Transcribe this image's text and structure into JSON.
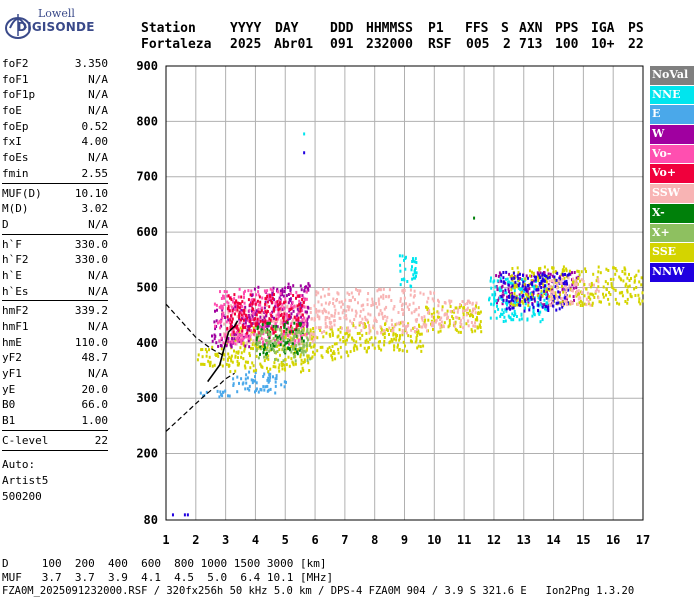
{
  "logo": {
    "line1": "Lowell",
    "line2": "DIGISONDE"
  },
  "header": {
    "labels": [
      "Station",
      "YYYY",
      "DAY",
      "DDD",
      "HHMMSS",
      "P1",
      "FFS",
      "S",
      "AXN",
      "PPS",
      "IGA",
      "PS"
    ],
    "values": [
      "Fortaleza",
      "2025",
      "Abr01",
      "091",
      "232000",
      "RSF",
      "005",
      "2",
      "713",
      "100",
      "10+",
      "22"
    ]
  },
  "params": [
    [
      {
        "label": "foF2",
        "value": "3.350"
      },
      {
        "label": "foF1",
        "value": "N/A"
      },
      {
        "label": "foF1p",
        "value": "N/A"
      },
      {
        "label": "foE",
        "value": "N/A"
      },
      {
        "label": "foEp",
        "value": "0.52"
      },
      {
        "label": "fxI",
        "value": "4.00"
      },
      {
        "label": "foEs",
        "value": "N/A"
      },
      {
        "label": "fmin",
        "value": "2.55"
      }
    ],
    [
      {
        "label": "MUF(D)",
        "value": "10.10"
      },
      {
        "label": "M(D)",
        "value": "3.02"
      },
      {
        "label": "D",
        "value": "N/A"
      }
    ],
    [
      {
        "label": "h`F",
        "value": "330.0"
      },
      {
        "label": "h`F2",
        "value": "330.0"
      },
      {
        "label": "h`E",
        "value": "N/A"
      },
      {
        "label": "h`Es",
        "value": "N/A"
      }
    ],
    [
      {
        "label": "hmF2",
        "value": "339.2"
      },
      {
        "label": "hmF1",
        "value": "N/A"
      },
      {
        "label": "hmE",
        "value": "110.0"
      },
      {
        "label": "yF2",
        "value": "48.7"
      },
      {
        "label": "yF1",
        "value": "N/A"
      },
      {
        "label": "yE",
        "value": "20.0"
      },
      {
        "label": "B0",
        "value": "66.0"
      },
      {
        "label": "B1",
        "value": "1.00"
      }
    ],
    [
      {
        "label": "C-level",
        "value": "22"
      }
    ]
  ],
  "auto": [
    "Auto:",
    "Artist5",
    "500200"
  ],
  "footer": {
    "d_line": "D     100  200  400  600  800 1000 1500 3000 [km]",
    "muf_line": "MUF   3.7  3.7  3.9  4.1  4.5  5.0  6.4 10.1 [MHz]",
    "file_line": "FZA0M_2025091232000.RSF / 320fx256h 50 kHz 5.0 km / DPS-4 FZA0M 904 / 3.9 S 321.6 E   Ion2Png 1.3.20"
  },
  "legend": [
    {
      "label": "NoVal",
      "color": "#7f7f7f"
    },
    {
      "label": "NNE",
      "color": "#00e5ee"
    },
    {
      "label": "E",
      "color": "#4aa8ea"
    },
    {
      "label": "W",
      "color": "#a000a0"
    },
    {
      "label": "Vo-",
      "color": "#ff4fb0"
    },
    {
      "label": "Vo+",
      "color": "#f0003c"
    },
    {
      "label": "SSW",
      "color": "#f8b4b4"
    },
    {
      "label": "X-",
      "color": "#00800a"
    },
    {
      "label": "X+",
      "color": "#8ec060"
    },
    {
      "label": "SSE",
      "color": "#d4d400"
    },
    {
      "label": "NNW",
      "color": "#2000e0"
    }
  ],
  "chart_data": {
    "type": "scatter",
    "subtype": "ionogram",
    "xlim": [
      1,
      17
    ],
    "ylim": [
      80,
      900
    ],
    "xticks": [
      1,
      2,
      3,
      4,
      5,
      6,
      7,
      8,
      9,
      10,
      11,
      12,
      13,
      14,
      15,
      16,
      17
    ],
    "yticks": [
      80,
      200,
      300,
      400,
      500,
      600,
      700,
      800,
      900
    ],
    "grid": true,
    "legend_position": "right",
    "clusters": [
      {
        "series": "E",
        "x": [
          2.0,
          3.2
        ],
        "y": [
          305,
          318
        ]
      },
      {
        "series": "E",
        "x": [
          3.2,
          5.0
        ],
        "y": [
          312,
          350
        ]
      },
      {
        "series": "SSE",
        "x": [
          2.0,
          3.5
        ],
        "y": [
          360,
          395
        ]
      },
      {
        "series": "SSE",
        "x": [
          3.0,
          5.8
        ],
        "y": [
          350,
          430
        ]
      },
      {
        "series": "SSE",
        "x": [
          5.8,
          7.2
        ],
        "y": [
          370,
          430
        ]
      },
      {
        "series": "SSE",
        "x": [
          7.2,
          9.6
        ],
        "y": [
          385,
          440
        ]
      },
      {
        "series": "SSE",
        "x": [
          9.6,
          11.6
        ],
        "y": [
          420,
          470
        ]
      },
      {
        "series": "SSW",
        "x": [
          2.8,
          6.0
        ],
        "y": [
          400,
          470
        ]
      },
      {
        "series": "SSW",
        "x": [
          6.0,
          10.0
        ],
        "y": [
          420,
          500
        ]
      },
      {
        "series": "SSW",
        "x": [
          10.0,
          11.4
        ],
        "y": [
          430,
          480
        ]
      },
      {
        "series": "W",
        "x": [
          2.5,
          3.8
        ],
        "y": [
          395,
          470
        ]
      },
      {
        "series": "W",
        "x": [
          3.8,
          5.8
        ],
        "y": [
          430,
          510
        ]
      },
      {
        "series": "W",
        "x": [
          12.0,
          14.8
        ],
        "y": [
          470,
          530
        ]
      },
      {
        "series": "Vo-",
        "x": [
          2.6,
          5.7
        ],
        "y": [
          400,
          500
        ]
      },
      {
        "series": "Vo+",
        "x": [
          3.0,
          5.6
        ],
        "y": [
          420,
          490
        ]
      },
      {
        "series": "X-",
        "x": [
          4.0,
          5.6
        ],
        "y": [
          380,
          440
        ]
      },
      {
        "series": "X+",
        "x": [
          4.0,
          5.8
        ],
        "y": [
          370,
          430
        ]
      },
      {
        "series": "NNE",
        "x": [
          11.8,
          13.8
        ],
        "y": [
          440,
          520
        ]
      },
      {
        "series": "NNE",
        "x": [
          8.8,
          9.4
        ],
        "y": [
          500,
          560
        ]
      },
      {
        "series": "SSE",
        "x": [
          12.5,
          17.0
        ],
        "y": [
          470,
          540
        ]
      },
      {
        "series": "NNW",
        "x": [
          12.2,
          14.5
        ],
        "y": [
          460,
          530
        ]
      },
      {
        "series": "SSW",
        "x": [
          13.8,
          15.5
        ],
        "y": [
          470,
          520
        ]
      }
    ],
    "isolated_points": [
      {
        "series": "NNE",
        "x": 5.6,
        "y": 780
      },
      {
        "series": "NNW",
        "x": 5.6,
        "y": 746
      },
      {
        "series": "X-",
        "x": 11.3,
        "y": 628
      },
      {
        "series": "NNW",
        "x": 1.2,
        "y": 92
      },
      {
        "series": "NNW",
        "x": 1.6,
        "y": 92
      },
      {
        "series": "NNW",
        "x": 1.7,
        "y": 92
      }
    ],
    "profile_dashed": {
      "x": [
        1.0,
        1.5,
        2.0,
        2.3,
        2.6,
        2.8,
        2.9,
        3.0,
        3.3
      ],
      "y": [
        240,
        265,
        290,
        305,
        318,
        325,
        330,
        335,
        345
      ]
    },
    "profile_dashed_top": {
      "x": [
        1.0,
        1.5,
        2.0,
        2.5,
        2.9
      ],
      "y": [
        470,
        440,
        410,
        390,
        378
      ]
    },
    "trace_black": {
      "x": [
        2.4,
        2.6,
        2.8,
        2.9,
        3.0,
        3.1,
        3.3,
        3.4
      ],
      "y": [
        330,
        345,
        360,
        380,
        400,
        420,
        430,
        440
      ]
    }
  }
}
